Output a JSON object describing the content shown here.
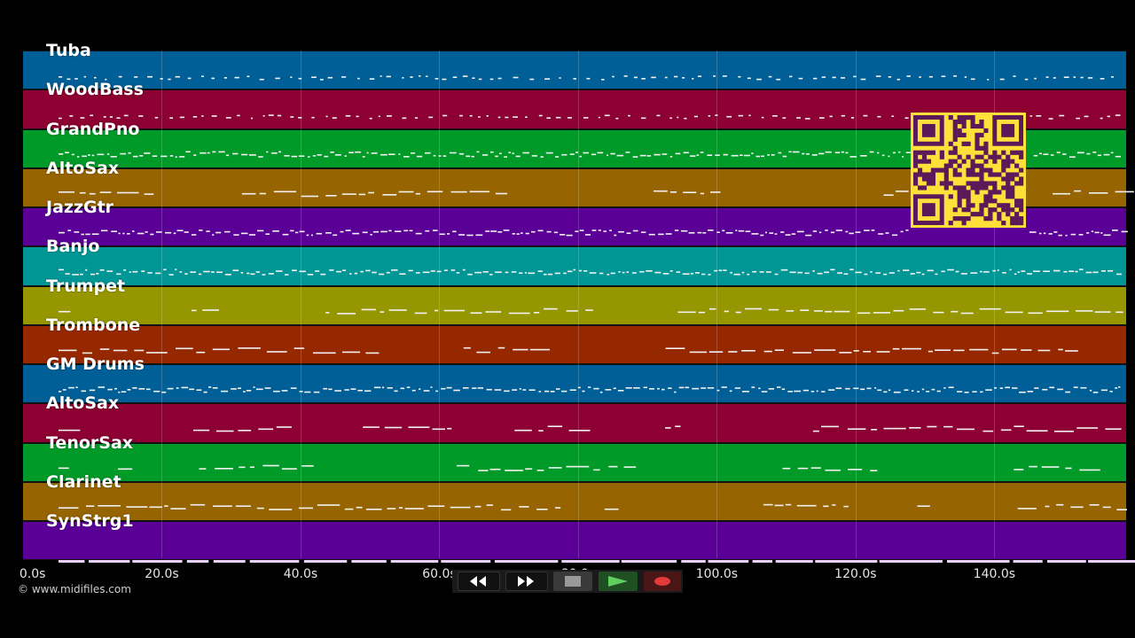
{
  "tracks": [
    {
      "name": "Tuba",
      "color": "#005f96",
      "density": "sparse"
    },
    {
      "name": "WoodBass",
      "color": "#8c0032",
      "density": "sparse"
    },
    {
      "name": "GrandPno",
      "color": "#009a28",
      "density": "dense"
    },
    {
      "name": "AltoSax",
      "color": "#966400",
      "density": "phrases"
    },
    {
      "name": "JazzGtr",
      "color": "#5a0096",
      "density": "dense"
    },
    {
      "name": "Banjo",
      "color": "#009696",
      "density": "dense"
    },
    {
      "name": "Trumpet",
      "color": "#969600",
      "density": "phrases"
    },
    {
      "name": "Trombone",
      "color": "#962800",
      "density": "phrases"
    },
    {
      "name": "GM Drums",
      "color": "#005f96",
      "density": "dense"
    },
    {
      "name": "AltoSax",
      "color": "#8c0032",
      "density": "phrases"
    },
    {
      "name": "TenorSax",
      "color": "#009a28",
      "density": "phrases"
    },
    {
      "name": "Clarinet",
      "color": "#966400",
      "density": "phrases"
    },
    {
      "name": "SynStrg1",
      "color": "#5a0096",
      "density": "sustain"
    }
  ],
  "timeline": {
    "max_seconds": 159,
    "tick_labels": [
      "0.0s",
      "20.0s",
      "40.0s",
      "60.0s",
      "80.0s",
      "100.0s",
      "120.0s",
      "140.0s"
    ],
    "tick_values": [
      0,
      20,
      40,
      60,
      80,
      100,
      120,
      140
    ]
  },
  "copyright": "© www.midifiles.com",
  "qr_code": {
    "icon": "qr-code-icon",
    "color": "#ffe03a",
    "module_color": "#5a1a5a"
  },
  "transport": [
    {
      "name": "rewind-button",
      "icon": "rewind-icon",
      "glyph": "◀◀"
    },
    {
      "name": "fast-forward-button",
      "icon": "fast-forward-icon",
      "glyph": "▶▶"
    },
    {
      "name": "stop-button",
      "icon": "stop-icon",
      "glyph": "■"
    },
    {
      "name": "play-button",
      "icon": "play-icon",
      "glyph": "▶"
    },
    {
      "name": "record-button",
      "icon": "record-icon",
      "glyph": "●"
    }
  ]
}
